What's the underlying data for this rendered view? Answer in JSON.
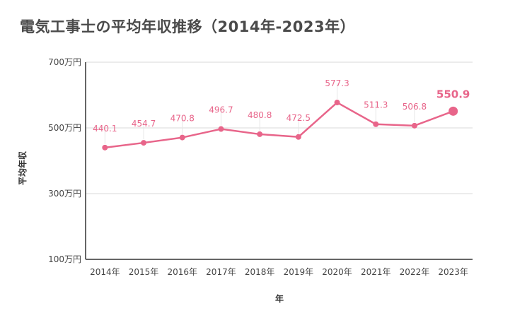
{
  "chart_data": {
    "type": "line",
    "title": "電気工事士の平均年収推移（2014年-2023年）",
    "xlabel": "年",
    "ylabel": "平均年収",
    "categories": [
      "2014年",
      "2015年",
      "2016年",
      "2017年",
      "2018年",
      "2019年",
      "2020年",
      "2021年",
      "2022年",
      "2023年"
    ],
    "series": [
      {
        "values": [
          440.1,
          454.7,
          470.8,
          496.7,
          480.8,
          472.5,
          577.3,
          511.3,
          506.8,
          550.9
        ]
      }
    ],
    "value_labels": [
      "440.1",
      "454.7",
      "470.8",
      "496.7",
      "480.8",
      "472.5",
      "577.3",
      "511.3",
      "506.8",
      "550.9"
    ],
    "ylim": [
      100,
      700
    ],
    "yticks": [
      100,
      300,
      500,
      700
    ],
    "ytick_labels": [
      "100万円",
      "300万円",
      "500万円",
      "700万円"
    ],
    "grid": true,
    "highlight_last": true,
    "colors": {
      "line": "#e8658a",
      "grid": "#d9d9d9",
      "axis": "#333333"
    }
  }
}
